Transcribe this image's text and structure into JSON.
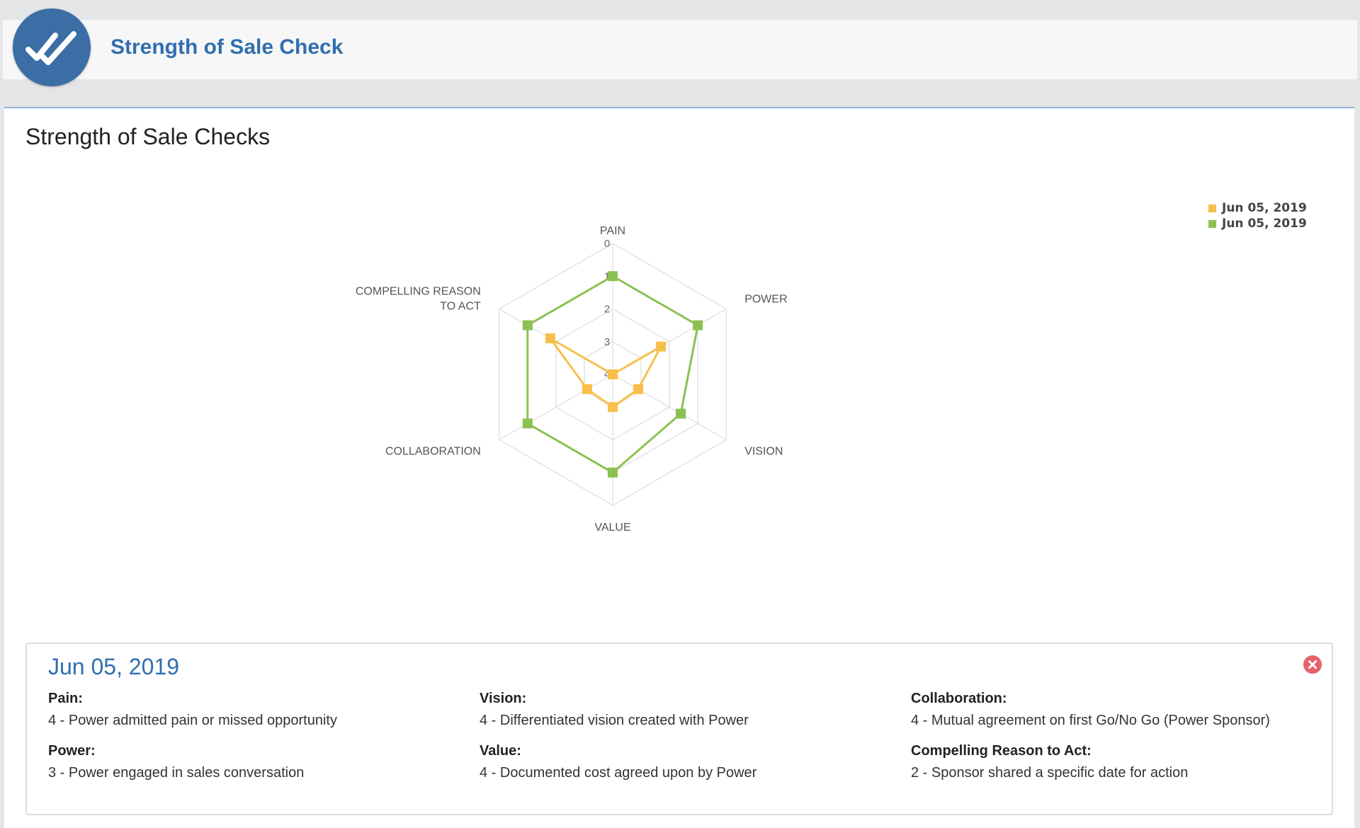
{
  "header": {
    "logo_icon": "double-check-icon",
    "title": "Strength of Sale Check"
  },
  "card": {
    "title": "Strength of Sale Checks"
  },
  "chart_data": {
    "type": "radar",
    "axes": [
      "PAIN",
      "POWER",
      "VISION",
      "VALUE",
      "COLLABORATION",
      "COMPELLING REASON TO ACT"
    ],
    "axis_label_lines": [
      [
        "PAIN"
      ],
      [
        "POWER"
      ],
      [
        "VISION"
      ],
      [
        "VALUE"
      ],
      [
        "COLLABORATION"
      ],
      [
        "COMPELLING REASON",
        "TO ACT"
      ]
    ],
    "ticks": [
      "0",
      "1",
      "2",
      "3",
      "4"
    ],
    "range": [
      0,
      4
    ],
    "reversed": true,
    "grid": true,
    "legend_position": "top-right",
    "series": [
      {
        "name": "Jun 05, 2019",
        "color": "#f7c04a",
        "values": [
          4,
          2.3,
          3.1,
          3,
          3.1,
          1.8
        ]
      },
      {
        "name": "Jun 05, 2019",
        "color": "#8cc152",
        "values": [
          1,
          1,
          1.6,
          1,
          1,
          1
        ]
      }
    ]
  },
  "details": {
    "date": "Jun 05, 2019",
    "close_icon": "close-icon",
    "fields": [
      {
        "label": "Pain:",
        "value": "4 - Power admitted pain or missed opportunity"
      },
      {
        "label": "Power:",
        "value": "3 - Power engaged in sales conversation"
      },
      {
        "label": "Vision:",
        "value": "4 - Differentiated vision created with Power"
      },
      {
        "label": "Value:",
        "value": "4 - Documented cost agreed upon by Power"
      },
      {
        "label": "Collaboration:",
        "value": "4 - Mutual agreement on first Go/No Go (Power Sponsor)"
      },
      {
        "label": "Compelling Reason to Act:",
        "value": "2 - Sponsor shared a specific date for action"
      }
    ]
  }
}
